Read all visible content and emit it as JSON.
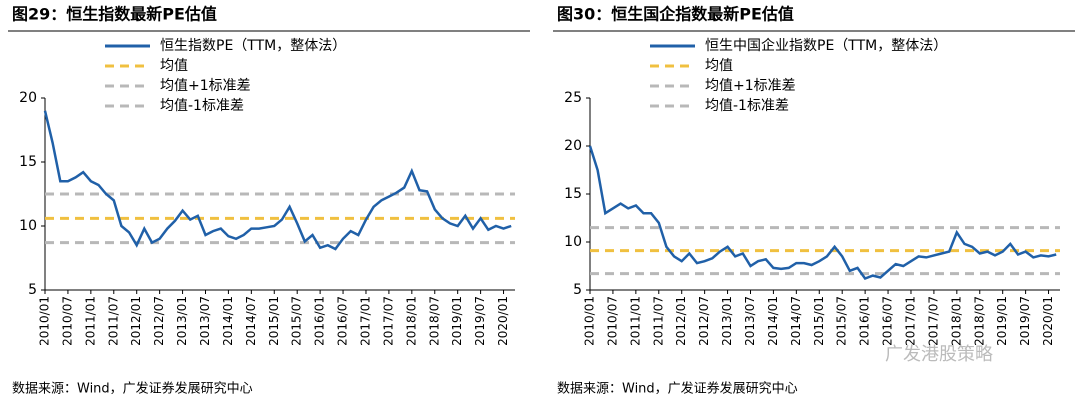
{
  "chart_data": [
    {
      "type": "line",
      "title": "图29：恒生指数最新PE估值",
      "source": "数据来源：Wind，广发证券发展研究中心",
      "x": [
        "2010/01",
        "2010/03",
        "2010/05",
        "2010/07",
        "2010/09",
        "2010/11",
        "2011/01",
        "2011/03",
        "2011/05",
        "2011/07",
        "2011/09",
        "2011/11",
        "2012/01",
        "2012/03",
        "2012/05",
        "2012/07",
        "2012/09",
        "2012/11",
        "2013/01",
        "2013/03",
        "2013/05",
        "2013/07",
        "2013/09",
        "2013/11",
        "2014/01",
        "2014/03",
        "2014/05",
        "2014/07",
        "2014/09",
        "2014/11",
        "2015/01",
        "2015/03",
        "2015/05",
        "2015/07",
        "2015/09",
        "2015/11",
        "2016/01",
        "2016/03",
        "2016/05",
        "2016/07",
        "2016/09",
        "2016/11",
        "2017/01",
        "2017/03",
        "2017/05",
        "2017/07",
        "2017/09",
        "2017/11",
        "2018/01",
        "2018/03",
        "2018/05",
        "2018/07",
        "2018/09",
        "2018/11",
        "2019/01",
        "2019/03",
        "2019/05",
        "2019/07",
        "2019/09",
        "2019/11",
        "2020/01",
        "2020/03"
      ],
      "series": [
        {
          "name": "恒生指数PE（TTM，整体法）",
          "color": "#2060a8",
          "values": [
            19.0,
            16.5,
            13.5,
            13.5,
            13.8,
            14.2,
            13.5,
            13.2,
            12.5,
            12.0,
            10.0,
            9.5,
            8.5,
            9.8,
            8.7,
            9.0,
            9.8,
            10.4,
            11.2,
            10.5,
            10.8,
            9.3,
            9.6,
            9.8,
            9.2,
            9.0,
            9.3,
            9.8,
            9.8,
            9.9,
            10.0,
            10.5,
            11.5,
            10.2,
            8.8,
            9.3,
            8.3,
            8.5,
            8.2,
            9.0,
            9.6,
            9.3,
            10.5,
            11.5,
            12.0,
            12.3,
            12.6,
            13.0,
            14.3,
            12.8,
            12.7,
            11.3,
            10.6,
            10.2,
            10.0,
            10.8,
            9.8,
            10.6,
            9.7,
            10.0,
            9.8,
            10.0
          ]
        }
      ],
      "reference_lines": [
        {
          "name": "均值",
          "color": "#f0c040",
          "value": 10.6
        },
        {
          "name": "均值+1标准差",
          "color": "#b8b8b8",
          "value": 12.5
        },
        {
          "name": "均值-1标准差",
          "color": "#b8b8b8",
          "value": 8.7
        }
      ],
      "xlim": [
        "2010/01",
        "2020/04"
      ],
      "xticks": [
        "2010/01",
        "2010/07",
        "2011/01",
        "2011/07",
        "2012/01",
        "2012/07",
        "2013/01",
        "2013/07",
        "2014/01",
        "2014/07",
        "2015/01",
        "2015/07",
        "2016/01",
        "2016/07",
        "2017/01",
        "2017/07",
        "2018/01",
        "2018/07",
        "2019/01",
        "2019/07",
        "2020/01"
      ],
      "ylim": [
        5,
        20
      ],
      "yticks": [
        5,
        10,
        15,
        20
      ]
    },
    {
      "type": "line",
      "title": "图30：恒生国企指数最新PE估值",
      "source": "数据来源：Wind，广发证券发展研究中心",
      "watermark": "广发港股策略",
      "x": [
        "2010/01",
        "2010/03",
        "2010/05",
        "2010/07",
        "2010/09",
        "2010/11",
        "2011/01",
        "2011/03",
        "2011/05",
        "2011/07",
        "2011/09",
        "2011/11",
        "2012/01",
        "2012/03",
        "2012/05",
        "2012/07",
        "2012/09",
        "2012/11",
        "2013/01",
        "2013/03",
        "2013/05",
        "2013/07",
        "2013/09",
        "2013/11",
        "2014/01",
        "2014/03",
        "2014/05",
        "2014/07",
        "2014/09",
        "2014/11",
        "2015/01",
        "2015/03",
        "2015/05",
        "2015/07",
        "2015/09",
        "2015/11",
        "2016/01",
        "2016/03",
        "2016/05",
        "2016/07",
        "2016/09",
        "2016/11",
        "2017/01",
        "2017/03",
        "2017/05",
        "2017/07",
        "2017/09",
        "2017/11",
        "2018/01",
        "2018/03",
        "2018/05",
        "2018/07",
        "2018/09",
        "2018/11",
        "2019/01",
        "2019/03",
        "2019/05",
        "2019/07",
        "2019/09",
        "2019/11",
        "2020/01",
        "2020/03"
      ],
      "series": [
        {
          "name": "恒生中国企业指数PE（TTM，整体法）",
          "color": "#2060a8",
          "values": [
            20.0,
            17.5,
            13.0,
            13.5,
            14.0,
            13.5,
            13.8,
            13.0,
            13.0,
            12.0,
            9.5,
            8.5,
            8.0,
            8.8,
            7.8,
            8.0,
            8.3,
            9.0,
            9.5,
            8.5,
            8.8,
            7.5,
            8.0,
            8.2,
            7.3,
            7.2,
            7.3,
            7.8,
            7.8,
            7.6,
            8.0,
            8.5,
            9.5,
            8.5,
            7.0,
            7.3,
            6.2,
            6.5,
            6.3,
            7.0,
            7.7,
            7.5,
            8.0,
            8.5,
            8.4,
            8.6,
            8.8,
            9.0,
            11.0,
            9.8,
            9.5,
            8.8,
            9.0,
            8.6,
            9.0,
            9.8,
            8.7,
            9.0,
            8.4,
            8.6,
            8.5,
            8.7
          ]
        }
      ],
      "reference_lines": [
        {
          "name": "均值",
          "color": "#f0c040",
          "value": 9.1
        },
        {
          "name": "均值+1标准差",
          "color": "#b8b8b8",
          "value": 11.5
        },
        {
          "name": "均值-1标准差",
          "color": "#b8b8b8",
          "value": 6.7
        }
      ],
      "xlim": [
        "2010/01",
        "2020/04"
      ],
      "xticks": [
        "2010/01",
        "2010/07",
        "2011/01",
        "2011/07",
        "2012/01",
        "2012/07",
        "2013/01",
        "2013/07",
        "2014/01",
        "2014/07",
        "2015/01",
        "2015/07",
        "2016/01",
        "2016/07",
        "2017/01",
        "2017/07",
        "2018/01",
        "2018/07",
        "2019/01",
        "2019/07",
        "2020/01"
      ],
      "ylim": [
        5,
        25
      ],
      "yticks": [
        5,
        10,
        15,
        20,
        25
      ]
    }
  ]
}
